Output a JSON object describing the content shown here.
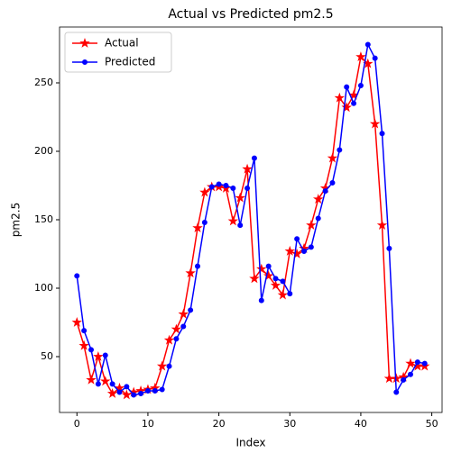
{
  "chart_data": {
    "type": "line",
    "title": "Actual vs Predicted pm2.5",
    "x_label": "Index",
    "y_label": "pm2.5",
    "x": [
      0,
      1,
      2,
      3,
      4,
      5,
      6,
      7,
      8,
      9,
      10,
      11,
      12,
      13,
      14,
      15,
      16,
      17,
      18,
      19,
      20,
      21,
      22,
      23,
      24,
      25,
      26,
      27,
      28,
      29,
      30,
      31,
      32,
      33,
      34,
      35,
      36,
      37,
      38,
      39,
      40,
      41,
      42,
      43,
      44,
      45,
      46,
      47,
      48,
      49
    ],
    "series": [
      {
        "name": "Actual",
        "color": "#ff0000",
        "marker": "star",
        "values": [
          75,
          58,
          33,
          50,
          32,
          23,
          27,
          22,
          24,
          25,
          26,
          27,
          43,
          62,
          70,
          81,
          111,
          144,
          170,
          174,
          174,
          173,
          149,
          166,
          187,
          107,
          114,
          109,
          102,
          95,
          127,
          125,
          129,
          146,
          165,
          173,
          195,
          239,
          232,
          241,
          269,
          264,
          220,
          146,
          34,
          34,
          35,
          45,
          43,
          43
        ]
      },
      {
        "name": "Predicted",
        "color": "#0000ff",
        "marker": "dot",
        "values": [
          109,
          69,
          55,
          30,
          51,
          30,
          24,
          28,
          22,
          23,
          25,
          25,
          26,
          43,
          63,
          72,
          84,
          116,
          148,
          174,
          176,
          175,
          173,
          146,
          173,
          195,
          91,
          116,
          107,
          105,
          96,
          136,
          127,
          130,
          151,
          171,
          177,
          201,
          247,
          235,
          248,
          278,
          268,
          213,
          129,
          24,
          33,
          37,
          46,
          45
        ]
      }
    ],
    "xlim": [
      -2.45,
      51.45
    ],
    "ylim": [
      9.2,
      290.8
    ],
    "xticks": [
      0,
      10,
      20,
      30,
      40,
      50
    ],
    "yticks": [
      50,
      100,
      150,
      200,
      250
    ],
    "legend": "upper left"
  }
}
